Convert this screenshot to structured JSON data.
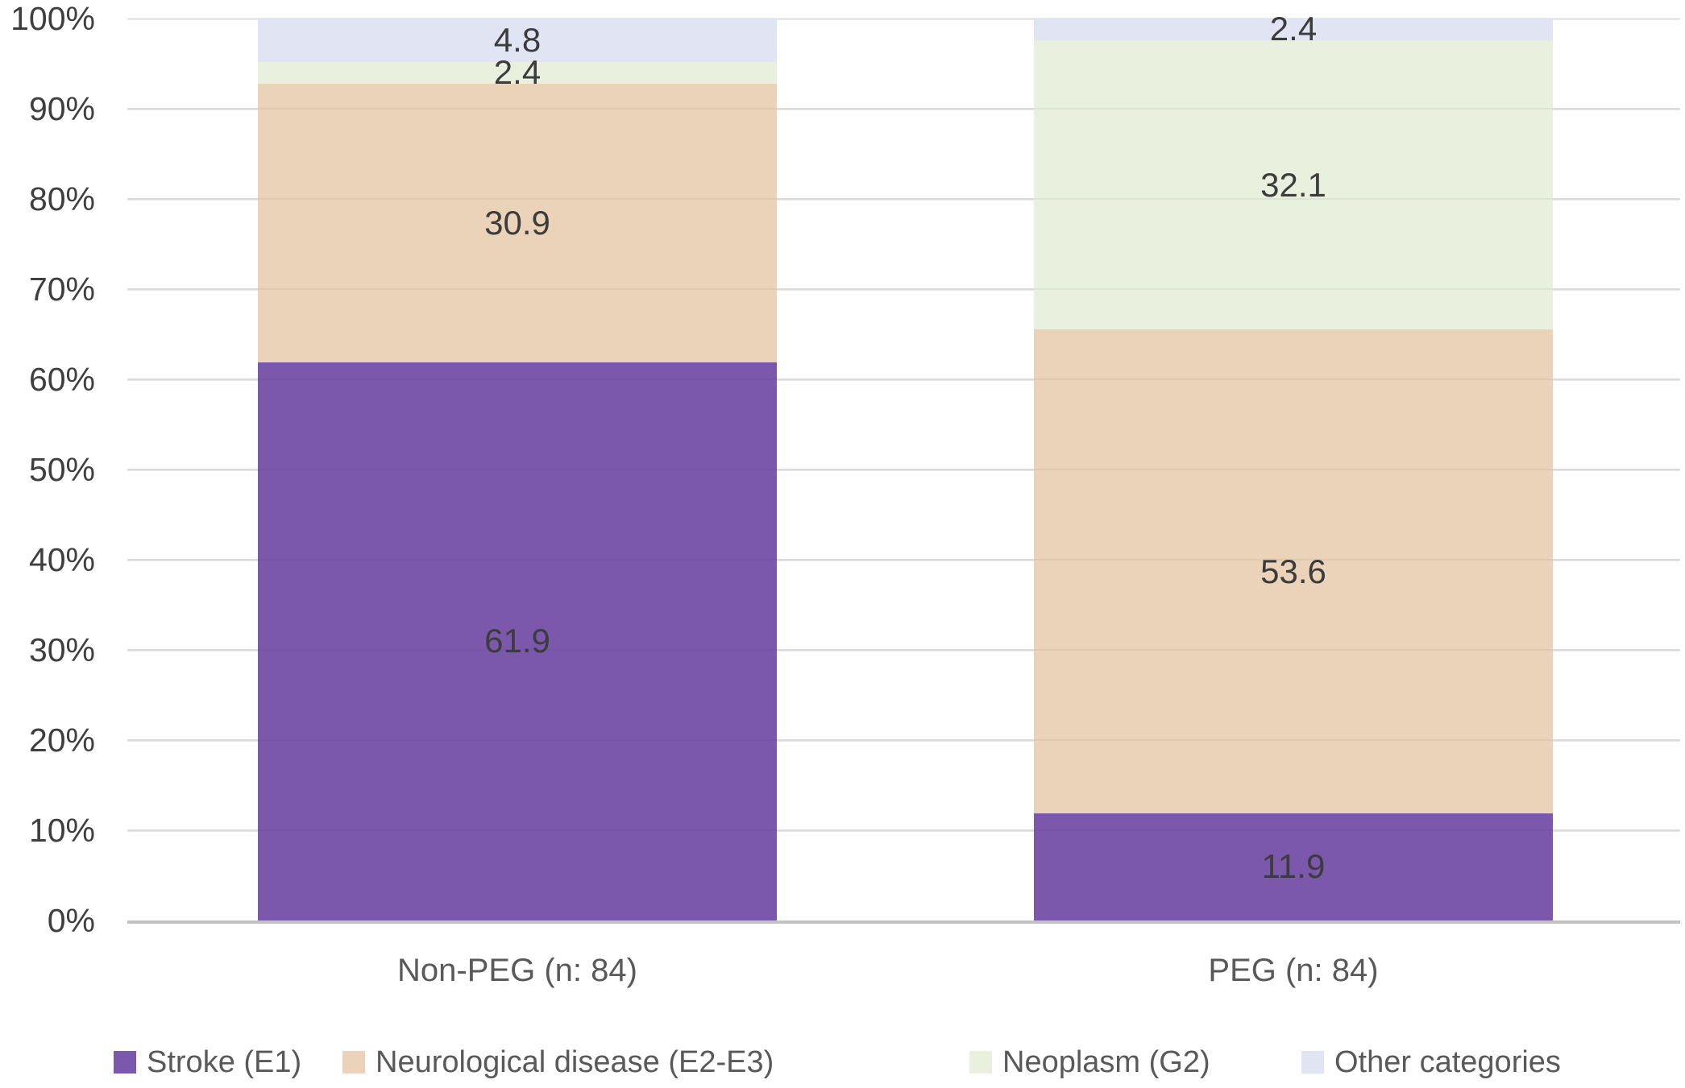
{
  "chart_data": {
    "type": "bar",
    "subtype": "stacked-column-100",
    "title": "",
    "xlabel": "",
    "ylabel": "",
    "categories": [
      "Non-PEG (n: 84)",
      "PEG (n: 84)"
    ],
    "series": [
      {
        "name": "Stroke (E1)",
        "color": "#7b58ab",
        "values": [
          61.9,
          11.9
        ]
      },
      {
        "name": "Neurological disease (E2-E3)",
        "color": "#ebd3b9",
        "values": [
          30.9,
          53.6
        ]
      },
      {
        "name": "Neoplasm (G2)",
        "color": "#e9f1de",
        "values": [
          2.4,
          32.1
        ]
      },
      {
        "name": "Other categories",
        "color": "#e1e4f3",
        "values": [
          4.8,
          2.4
        ]
      }
    ],
    "data_labels": {
      "Non-PEG (n: 84)": {
        "Stroke (E1)": "61.9",
        "Neurological disease (E2-E3)": "30.9",
        "Neoplasm (G2)": "2.4",
        "Other categories": "4.8"
      },
      "PEG (n: 84)": {
        "Stroke (E1)": "11.9",
        "Neurological disease (E2-E3)": "53.6",
        "Neoplasm (G2)": "32.1",
        "Other categories": "2.4"
      }
    },
    "yaxis": {
      "ylim": [
        0,
        100
      ],
      "tick_step": 10,
      "tick_labels": [
        "0%",
        "10%",
        "20%",
        "30%",
        "40%",
        "50%",
        "60%",
        "70%",
        "80%",
        "90%",
        "100%"
      ]
    },
    "grid": "on",
    "legend_position": "bottom",
    "colors": {
      "gridline": "#e8e8e8",
      "axis_line": "#c2c2c2",
      "tick_label": "#3f3f3f",
      "data_label": "#3c3c3c",
      "category_label": "#595959",
      "legend_label": "#595959",
      "background": "#ffffff"
    }
  }
}
